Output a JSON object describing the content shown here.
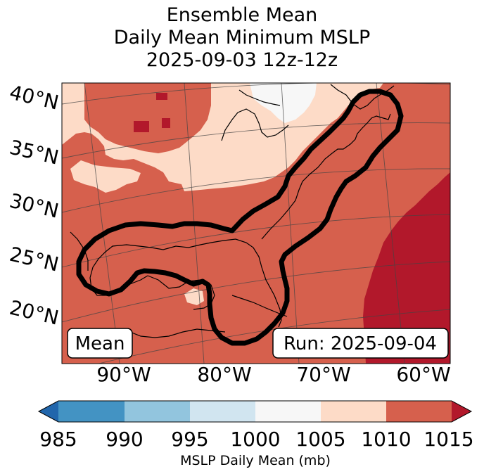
{
  "title": {
    "line1": "Ensemble Mean",
    "line2": "Daily Mean Minimum MSLP",
    "line3": "2025-09-03 12z-12z"
  },
  "map": {
    "lat_labels": [
      "40°N",
      "35°N",
      "30°N",
      "25°N",
      "20°N"
    ],
    "lon_labels": [
      "90°W",
      "80°W",
      "70°W",
      "60°W"
    ],
    "mean_label": "Mean",
    "run_label": "Run: 2025-09-04"
  },
  "colorbar": {
    "ticks": [
      "985",
      "990",
      "995",
      "1000",
      "1005",
      "1010",
      "1015"
    ],
    "label": "MSLP Daily Mean (mb)",
    "colors": [
      "#2166ac",
      "#4393c3",
      "#92c5de",
      "#d1e5f0",
      "#f7f7f7",
      "#fddbc7",
      "#d6604d",
      "#b2182b"
    ]
  }
}
